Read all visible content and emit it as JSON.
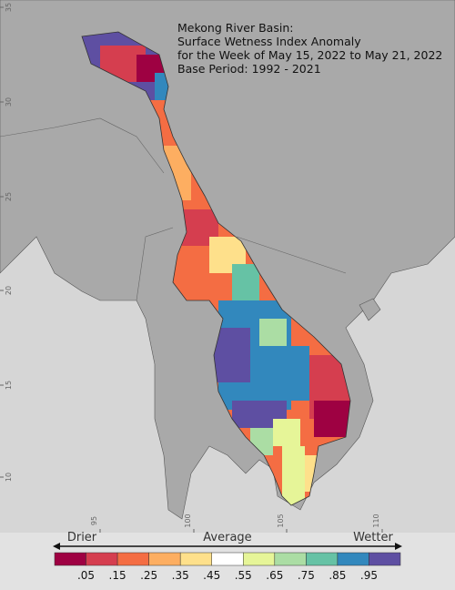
{
  "title": [
    "Mekong River Basin:",
    "Surface Wetness Index Anomaly",
    "for the Week of May 15, 2022 to May 21, 2022",
    "Base Period: 1992 - 2021"
  ],
  "latitude_labels": [
    "35",
    "30",
    "25",
    "20",
    "15",
    "10"
  ],
  "longitude_labels": [
    "95",
    "100",
    "105",
    "110"
  ],
  "legend": {
    "left": "Drier",
    "center": "Average",
    "right": "Wetter",
    "colors": [
      "#9e0142",
      "#d53e4f",
      "#f46d43",
      "#fdae61",
      "#fee08b",
      "#ffffff",
      "#e6f598",
      "#abdda4",
      "#66c2a5",
      "#3288bd",
      "#5e4fa2"
    ],
    "labels": [
      ".05",
      ".15",
      ".25",
      ".35",
      ".45",
      ".55",
      ".65",
      ".75",
      ".85",
      ".95"
    ]
  }
}
